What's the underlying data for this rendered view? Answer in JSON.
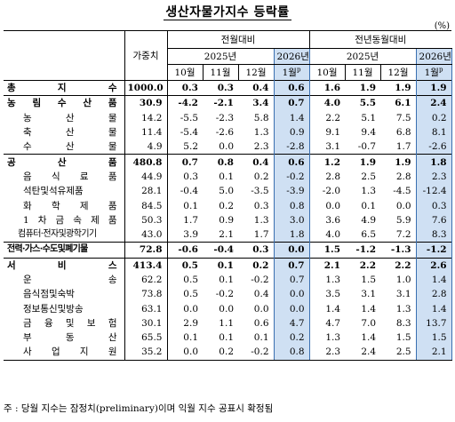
{
  "title": "생산자물가지수 등락률",
  "unit": "(%)",
  "header": {
    "weight_label": "가중치",
    "mom_label": "전월대비",
    "yoy_label": "전년동월대비",
    "year_prev": "2025년",
    "year_cur": "2026년",
    "months_prev": [
      "10월",
      "11월",
      "12월"
    ],
    "month_cur": "1월",
    "prelim_mark": "p"
  },
  "rows": [
    {
      "name": "총 지 수",
      "kind": "total",
      "weight": "1000.0",
      "mom": [
        "0.3",
        "0.3",
        "0.4",
        "0.6"
      ],
      "yoy": [
        "1.6",
        "1.9",
        "1.9",
        "1.9"
      ]
    },
    {
      "name": "농 림 수 산 품",
      "kind": "grp",
      "weight": "30.9",
      "mom": [
        "-4.2",
        "-2.1",
        "3.4",
        "0.7"
      ],
      "yoy": [
        "4.0",
        "5.5",
        "6.1",
        "2.4"
      ]
    },
    {
      "name": "농 산 물",
      "kind": "sub",
      "weight": "14.2",
      "mom": [
        "-5.5",
        "-2.3",
        "5.8",
        "1.4"
      ],
      "yoy": [
        "2.2",
        "5.1",
        "7.5",
        "0.2"
      ]
    },
    {
      "name": "축 산 물",
      "kind": "sub",
      "weight": "11.4",
      "mom": [
        "-5.4",
        "-2.6",
        "1.3",
        "0.9"
      ],
      "yoy": [
        "9.1",
        "9.4",
        "6.8",
        "8.1"
      ]
    },
    {
      "name": "수 산 물",
      "kind": "sub",
      "weight": "4.9",
      "mom": [
        "5.2",
        "0.0",
        "2.3",
        "-2.8"
      ],
      "yoy": [
        "3.1",
        "-0.7",
        "1.7",
        "-2.6"
      ]
    },
    {
      "name": "공 산 품",
      "kind": "grp",
      "weight": "480.8",
      "mom": [
        "0.7",
        "0.8",
        "0.4",
        "0.6"
      ],
      "yoy": [
        "1.2",
        "1.9",
        "1.9",
        "1.8"
      ]
    },
    {
      "name": "음 식 료 품",
      "kind": "sub",
      "weight": "44.9",
      "mom": [
        "0.3",
        "0.1",
        "0.2",
        "-0.2"
      ],
      "yoy": [
        "2.8",
        "2.5",
        "2.8",
        "2.3"
      ]
    },
    {
      "name": "석탄및석유제품",
      "kind": "sub",
      "weight": "28.1",
      "mom": [
        "-0.4",
        "5.0",
        "-3.5",
        "-3.9"
      ],
      "yoy": [
        "-2.0",
        "1.3",
        "-4.5",
        "-12.4"
      ]
    },
    {
      "name": "화 학 제 품",
      "kind": "sub",
      "weight": "84.5",
      "mom": [
        "0.1",
        "0.2",
        "0.3",
        "0.8"
      ],
      "yoy": [
        "0.0",
        "0.1",
        "0.0",
        "0.3"
      ]
    },
    {
      "name": "1 차 금 속 제 품",
      "kind": "sub",
      "weight": "50.3",
      "mom": [
        "1.7",
        "0.9",
        "1.3",
        "3.0"
      ],
      "yoy": [
        "3.6",
        "4.9",
        "5.9",
        "7.6"
      ]
    },
    {
      "name": "컴퓨터·전자및광학기기",
      "kind": "sub-dense",
      "weight": "43.0",
      "mom": [
        "3.9",
        "2.1",
        "1.7",
        "1.8"
      ],
      "yoy": [
        "4.0",
        "6.5",
        "7.2",
        "8.3"
      ]
    },
    {
      "name": "전력·가스·수도및폐기물",
      "kind": "grp-dense",
      "weight": "72.8",
      "mom": [
        "-0.6",
        "-0.4",
        "0.3",
        "0.0"
      ],
      "yoy": [
        "1.5",
        "-1.2",
        "-1.3",
        "-1.2"
      ]
    },
    {
      "name": "서 비 스",
      "kind": "grp",
      "weight": "413.4",
      "mom": [
        "0.5",
        "0.1",
        "0.2",
        "0.7"
      ],
      "yoy": [
        "2.1",
        "2.2",
        "2.2",
        "2.6"
      ]
    },
    {
      "name": "운 송",
      "kind": "sub",
      "weight": "62.2",
      "mom": [
        "0.5",
        "0.1",
        "-0.2",
        "0.7"
      ],
      "yoy": [
        "1.3",
        "1.5",
        "1.0",
        "1.4"
      ]
    },
    {
      "name": "음식점및숙박",
      "kind": "sub",
      "weight": "73.8",
      "mom": [
        "0.5",
        "-0.2",
        "0.4",
        "0.0"
      ],
      "yoy": [
        "3.5",
        "3.1",
        "3.1",
        "2.8"
      ]
    },
    {
      "name": "정보통신및방송",
      "kind": "sub",
      "weight": "63.1",
      "mom": [
        "0.0",
        "0.0",
        "0.0",
        "0.0"
      ],
      "yoy": [
        "1.4",
        "1.4",
        "1.3",
        "1.4"
      ]
    },
    {
      "name": "금 융 및 보 험",
      "kind": "sub",
      "weight": "30.1",
      "mom": [
        "2.9",
        "1.1",
        "0.6",
        "4.7"
      ],
      "yoy": [
        "4.7",
        "7.0",
        "8.3",
        "13.7"
      ]
    },
    {
      "name": "부 동 산",
      "kind": "sub",
      "weight": "65.5",
      "mom": [
        "0.1",
        "0.1",
        "0.1",
        "0.2"
      ],
      "yoy": [
        "1.3",
        "1.4",
        "1.5",
        "1.5"
      ]
    },
    {
      "name": "사 업 지 원",
      "kind": "sub",
      "weight": "35.2",
      "mom": [
        "0.0",
        "0.2",
        "-0.2",
        "0.8"
      ],
      "yoy": [
        "2.3",
        "2.4",
        "2.5",
        "2.1"
      ]
    }
  ],
  "footnote": "주 : 당월 지수는 잠정치(preliminary)이며 익월 지수 공표시 확정됨"
}
